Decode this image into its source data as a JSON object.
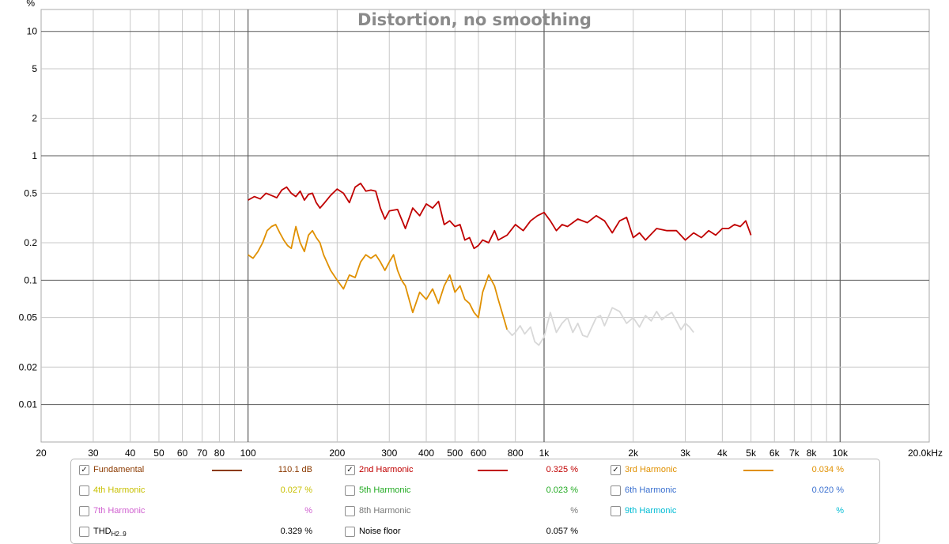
{
  "chart_data": {
    "type": "line",
    "title": "Distortion, no smoothing",
    "ylabel": "%",
    "xscale": "log",
    "yscale": "log",
    "xlim": [
      20,
      20000
    ],
    "ylim": [
      0.005,
      15
    ],
    "x_ticks": [
      {
        "v": 20,
        "label": "20"
      },
      {
        "v": 30,
        "label": "30"
      },
      {
        "v": 40,
        "label": "40"
      },
      {
        "v": 50,
        "label": "50"
      },
      {
        "v": 60,
        "label": "60"
      },
      {
        "v": 70,
        "label": "70"
      },
      {
        "v": 80,
        "label": "80"
      },
      {
        "v": 100,
        "label": "100"
      },
      {
        "v": 200,
        "label": "200"
      },
      {
        "v": 300,
        "label": "300"
      },
      {
        "v": 400,
        "label": "400"
      },
      {
        "v": 500,
        "label": "500"
      },
      {
        "v": 600,
        "label": "600"
      },
      {
        "v": 800,
        "label": "800"
      },
      {
        "v": 1000,
        "label": "1k"
      },
      {
        "v": 2000,
        "label": "2k"
      },
      {
        "v": 3000,
        "label": "3k"
      },
      {
        "v": 4000,
        "label": "4k"
      },
      {
        "v": 5000,
        "label": "5k"
      },
      {
        "v": 6000,
        "label": "6k"
      },
      {
        "v": 7000,
        "label": "7k"
      },
      {
        "v": 8000,
        "label": "8k"
      },
      {
        "v": 10000,
        "label": "10k"
      },
      {
        "v": 20000,
        "label": "20.0kHz"
      }
    ],
    "y_ticks": [
      {
        "v": 10,
        "label": "10"
      },
      {
        "v": 5,
        "label": "5"
      },
      {
        "v": 2,
        "label": "2"
      },
      {
        "v": 1,
        "label": "1"
      },
      {
        "v": 0.5,
        "label": "0.5"
      },
      {
        "v": 0.2,
        "label": "0.2"
      },
      {
        "v": 0.1,
        "label": "0.1"
      },
      {
        "v": 0.05,
        "label": "0.05"
      },
      {
        "v": 0.02,
        "label": "0.02"
      },
      {
        "v": 0.01,
        "label": "0.01"
      }
    ],
    "grid": true,
    "series": [
      {
        "name": "2nd Harmonic",
        "color": "#c00000",
        "x": [
          100,
          105,
          110,
          115,
          120,
          125,
          130,
          135,
          140,
          145,
          150,
          155,
          160,
          165,
          170,
          175,
          180,
          190,
          200,
          210,
          220,
          230,
          240,
          250,
          260,
          270,
          280,
          290,
          300,
          320,
          340,
          360,
          380,
          400,
          420,
          440,
          460,
          480,
          500,
          520,
          540,
          560,
          580,
          600,
          620,
          650,
          680,
          700,
          750,
          800,
          850,
          900,
          950,
          1000,
          1050,
          1100,
          1150,
          1200,
          1300,
          1400,
          1500,
          1600,
          1700,
          1800,
          1900,
          2000,
          2100,
          2200,
          2400,
          2600,
          2800,
          3000,
          3200,
          3400,
          3600,
          3800,
          4000,
          4200,
          4400,
          4600,
          4800,
          5000
        ],
        "y": [
          0.44,
          0.47,
          0.45,
          0.5,
          0.48,
          0.46,
          0.53,
          0.56,
          0.5,
          0.47,
          0.52,
          0.44,
          0.49,
          0.5,
          0.42,
          0.38,
          0.41,
          0.48,
          0.54,
          0.5,
          0.42,
          0.56,
          0.6,
          0.52,
          0.53,
          0.52,
          0.38,
          0.31,
          0.36,
          0.37,
          0.26,
          0.38,
          0.33,
          0.41,
          0.38,
          0.43,
          0.28,
          0.3,
          0.27,
          0.28,
          0.21,
          0.22,
          0.18,
          0.19,
          0.21,
          0.2,
          0.25,
          0.21,
          0.23,
          0.28,
          0.25,
          0.3,
          0.33,
          0.35,
          0.3,
          0.25,
          0.28,
          0.27,
          0.31,
          0.29,
          0.33,
          0.3,
          0.24,
          0.3,
          0.32,
          0.22,
          0.24,
          0.21,
          0.26,
          0.25,
          0.25,
          0.21,
          0.24,
          0.22,
          0.25,
          0.23,
          0.26,
          0.26,
          0.28,
          0.27,
          0.3,
          0.23
        ]
      },
      {
        "name": "3rd Harmonic",
        "color": "#e09000",
        "x": [
          100,
          104,
          108,
          112,
          116,
          120,
          124,
          128,
          132,
          136,
          140,
          145,
          150,
          155,
          160,
          165,
          170,
          175,
          180,
          190,
          200,
          210,
          220,
          230,
          240,
          250,
          260,
          270,
          280,
          290,
          300,
          310,
          320,
          330,
          340,
          350,
          360,
          380,
          400,
          420,
          440,
          460,
          480,
          500,
          520,
          540,
          560,
          580,
          600,
          620,
          650,
          680,
          700,
          730,
          750
        ],
        "y": [
          0.16,
          0.15,
          0.17,
          0.2,
          0.25,
          0.27,
          0.28,
          0.24,
          0.21,
          0.19,
          0.18,
          0.27,
          0.2,
          0.17,
          0.23,
          0.25,
          0.22,
          0.2,
          0.16,
          0.12,
          0.1,
          0.085,
          0.11,
          0.105,
          0.14,
          0.16,
          0.15,
          0.16,
          0.14,
          0.12,
          0.14,
          0.16,
          0.12,
          0.1,
          0.09,
          0.07,
          0.055,
          0.08,
          0.07,
          0.085,
          0.065,
          0.09,
          0.11,
          0.08,
          0.09,
          0.07,
          0.065,
          0.055,
          0.05,
          0.08,
          0.11,
          0.09,
          0.07,
          0.05,
          0.04
        ]
      },
      {
        "name": "3rd Harmonic (below noise)",
        "color": "#d8d8d8",
        "x": [
          750,
          780,
          800,
          830,
          860,
          900,
          930,
          960,
          1000,
          1050,
          1100,
          1150,
          1200,
          1250,
          1300,
          1350,
          1400,
          1450,
          1500,
          1550,
          1600,
          1700,
          1800,
          1900,
          2000,
          2100,
          2200,
          2300,
          2400,
          2500,
          2600,
          2700,
          2800,
          2900,
          3000,
          3100,
          3200
        ],
        "y": [
          0.04,
          0.036,
          0.038,
          0.043,
          0.037,
          0.042,
          0.032,
          0.03,
          0.035,
          0.055,
          0.038,
          0.045,
          0.05,
          0.038,
          0.045,
          0.036,
          0.035,
          0.042,
          0.05,
          0.052,
          0.043,
          0.06,
          0.056,
          0.045,
          0.05,
          0.042,
          0.052,
          0.047,
          0.056,
          0.048,
          0.052,
          0.055,
          0.047,
          0.04,
          0.045,
          0.042,
          0.038
        ]
      }
    ]
  },
  "legend": {
    "rows": [
      [
        {
          "label": "Fundamental",
          "value": "110.1 dB",
          "checked": true,
          "color": "#8b3a00",
          "swatch": true
        },
        {
          "label": "2nd Harmonic",
          "value": "0.325 %",
          "checked": true,
          "color": "#c00000",
          "swatch": true
        },
        {
          "label": "3rd Harmonic",
          "value": "0.034 %",
          "checked": true,
          "color": "#e09000",
          "swatch": true
        }
      ],
      [
        {
          "label": "4th Harmonic",
          "value": "0.027 %",
          "checked": false,
          "color": "#c8c000",
          "swatch": false
        },
        {
          "label": "5th Harmonic",
          "value": "0.023 %",
          "checked": false,
          "color": "#22aa22",
          "swatch": false
        },
        {
          "label": "6th Harmonic",
          "value": "0.020 %",
          "checked": false,
          "color": "#3a70d0",
          "swatch": false
        }
      ],
      [
        {
          "label": "7th Harmonic",
          "value": "%",
          "checked": false,
          "color": "#d060d0",
          "swatch": false
        },
        {
          "label": "8th Harmonic",
          "value": "%",
          "checked": false,
          "color": "#777777",
          "swatch": false
        },
        {
          "label": "9th Harmonic",
          "value": "%",
          "checked": false,
          "color": "#00bcd4",
          "swatch": false
        }
      ],
      [
        {
          "label": "THD",
          "label_sub": "H2..9",
          "value": "0.329 %",
          "checked": false,
          "color": "#000000",
          "swatch": false
        },
        {
          "label": "Noise floor",
          "value": "0.057 %",
          "checked": false,
          "color": "#000000",
          "swatch": false
        },
        null
      ]
    ]
  }
}
